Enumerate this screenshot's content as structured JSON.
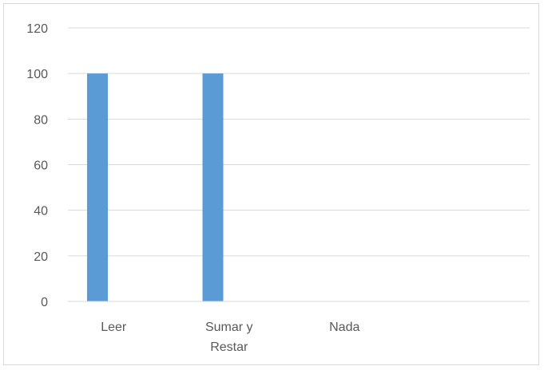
{
  "chart_data": {
    "type": "bar",
    "categories": [
      [
        "Leer"
      ],
      [
        "Sumar y",
        "Restar"
      ],
      [
        "Nada"
      ],
      [
        ""
      ]
    ],
    "series": [
      {
        "values": [
          100,
          100,
          0,
          0
        ],
        "color": "#5b9bd5"
      }
    ],
    "title": "",
    "xlabel": "",
    "ylabel": "",
    "ylim": [
      0,
      120
    ],
    "yticks": [
      "0",
      "20",
      "40",
      "60",
      "80",
      "100",
      "120"
    ],
    "grid": true,
    "legend": "none"
  }
}
